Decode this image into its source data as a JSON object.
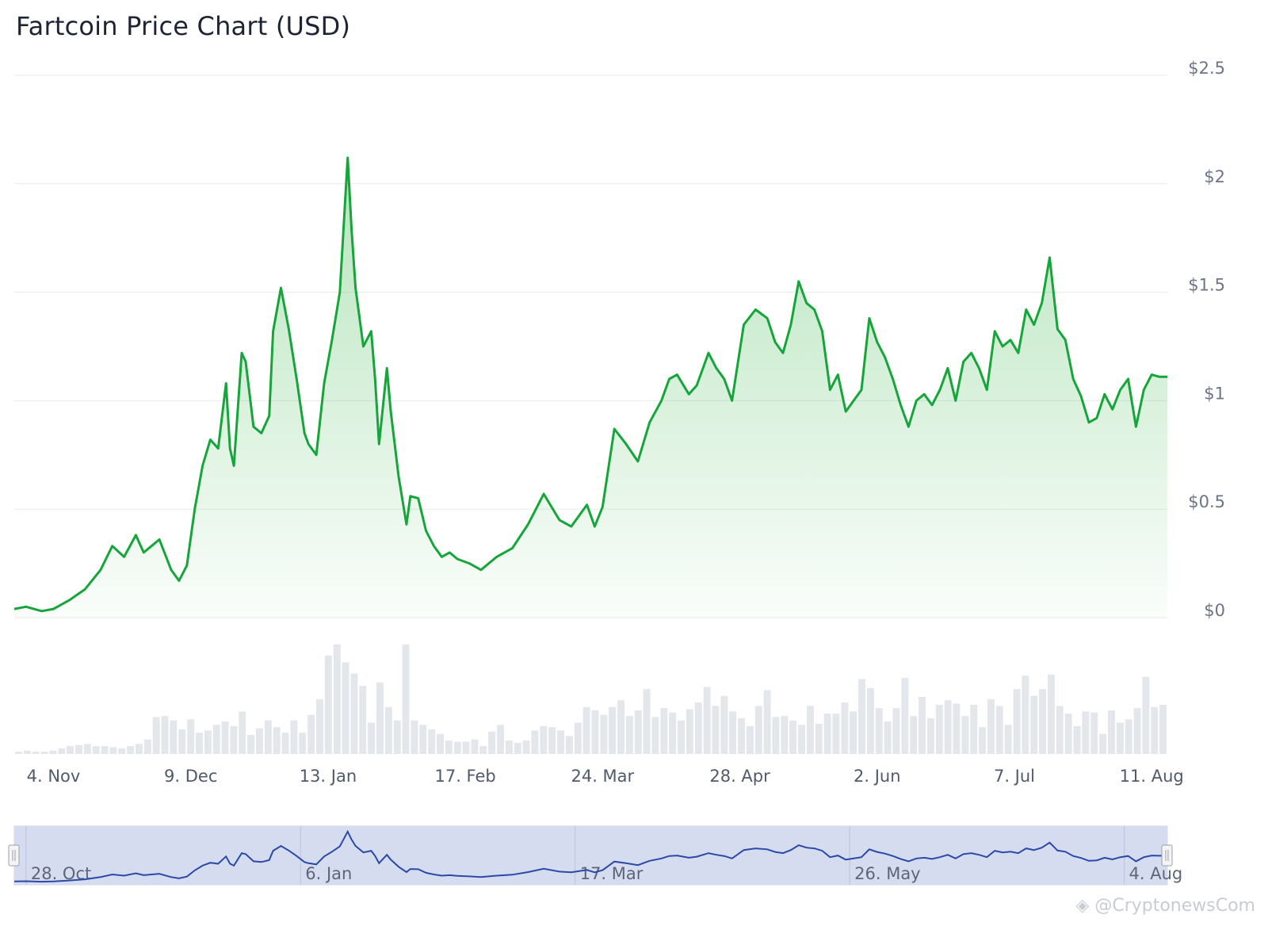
{
  "title": "Fartcoin Price Chart (USD)",
  "watermark": "@CryptonewsCom",
  "colors": {
    "price_line": "#16a53a",
    "area_top": "#5cc46a",
    "volume": "#e3e6ea",
    "navigator_fill": "#d6dcf0",
    "navigator_line": "#2b49a6",
    "gridline": "#e8eaee"
  },
  "chart_data": {
    "type": "line",
    "title": "Fartcoin Price Chart (USD)",
    "xlabel": "",
    "ylabel": "",
    "ylim": [
      0,
      2.5
    ],
    "y_ticks": [
      "$0",
      "$0.5",
      "$1",
      "$1.5",
      "$2",
      "$2.5"
    ],
    "x_ticks": [
      "4. Nov",
      "9. Dec",
      "13. Jan",
      "17. Feb",
      "24. Mar",
      "28. Apr",
      "2. Jun",
      "7. Jul",
      "11. Aug"
    ],
    "grid": true,
    "legend": "none",
    "x_range": [
      "2024-10-25",
      "2025-08-15"
    ],
    "series": [
      {
        "x": [
          "2024-10-25",
          "2024-10-28",
          "2024-11-01",
          "2024-11-04",
          "2024-11-08",
          "2024-11-12",
          "2024-11-16",
          "2024-11-19",
          "2024-11-22",
          "2024-11-25",
          "2024-11-27",
          "2024-11-29",
          "2024-12-01",
          "2024-12-04",
          "2024-12-06",
          "2024-12-08",
          "2024-12-10",
          "2024-12-12",
          "2024-12-14",
          "2024-12-16",
          "2024-12-18",
          "2024-12-19",
          "2024-12-20",
          "2024-12-22",
          "2024-12-23",
          "2024-12-25",
          "2024-12-27",
          "2024-12-29",
          "2024-12-30",
          "2025-01-01",
          "2025-01-03",
          "2025-01-05",
          "2025-01-07",
          "2025-01-08",
          "2025-01-10",
          "2025-01-12",
          "2025-01-14",
          "2025-01-16",
          "2025-01-18",
          "2025-01-19",
          "2025-01-20",
          "2025-01-22",
          "2025-01-24",
          "2025-01-25",
          "2025-01-26",
          "2025-01-28",
          "2025-01-29",
          "2025-01-31",
          "2025-02-02",
          "2025-02-03",
          "2025-02-05",
          "2025-02-07",
          "2025-02-09",
          "2025-02-11",
          "2025-02-13",
          "2025-02-15",
          "2025-02-18",
          "2025-02-21",
          "2025-02-25",
          "2025-03-01",
          "2025-03-05",
          "2025-03-09",
          "2025-03-13",
          "2025-03-16",
          "2025-03-20",
          "2025-03-22",
          "2025-03-24",
          "2025-03-27",
          "2025-03-30",
          "2025-04-02",
          "2025-04-05",
          "2025-04-08",
          "2025-04-10",
          "2025-04-12",
          "2025-04-15",
          "2025-04-17",
          "2025-04-20",
          "2025-04-22",
          "2025-04-24",
          "2025-04-26",
          "2025-04-29",
          "2025-05-02",
          "2025-05-05",
          "2025-05-07",
          "2025-05-09",
          "2025-05-11",
          "2025-05-13",
          "2025-05-15",
          "2025-05-17",
          "2025-05-19",
          "2025-05-21",
          "2025-05-23",
          "2025-05-25",
          "2025-05-27",
          "2025-05-29",
          "2025-05-31",
          "2025-06-02",
          "2025-06-04",
          "2025-06-06",
          "2025-06-08",
          "2025-06-10",
          "2025-06-12",
          "2025-06-14",
          "2025-06-16",
          "2025-06-18",
          "2025-06-20",
          "2025-06-22",
          "2025-06-24",
          "2025-06-26",
          "2025-06-28",
          "2025-06-30",
          "2025-07-02",
          "2025-07-04",
          "2025-07-06",
          "2025-07-08",
          "2025-07-10",
          "2025-07-12",
          "2025-07-14",
          "2025-07-16",
          "2025-07-18",
          "2025-07-20",
          "2025-07-22",
          "2025-07-24",
          "2025-07-26",
          "2025-07-28",
          "2025-07-30",
          "2025-08-01",
          "2025-08-03",
          "2025-08-05",
          "2025-08-07",
          "2025-08-09",
          "2025-08-11",
          "2025-08-13",
          "2025-08-15"
        ],
        "values": [
          0.04,
          0.05,
          0.03,
          0.04,
          0.08,
          0.13,
          0.22,
          0.33,
          0.28,
          0.38,
          0.3,
          0.33,
          0.36,
          0.22,
          0.17,
          0.24,
          0.5,
          0.7,
          0.82,
          0.78,
          1.08,
          0.78,
          0.7,
          1.22,
          1.18,
          0.88,
          0.85,
          0.93,
          1.32,
          1.52,
          1.33,
          1.1,
          0.85,
          0.8,
          0.75,
          1.08,
          1.28,
          1.5,
          2.12,
          1.79,
          1.52,
          1.25,
          1.32,
          1.1,
          0.8,
          1.15,
          0.95,
          0.65,
          0.43,
          0.56,
          0.55,
          0.4,
          0.33,
          0.28,
          0.3,
          0.27,
          0.25,
          0.22,
          0.28,
          0.32,
          0.43,
          0.57,
          0.45,
          0.42,
          0.52,
          0.42,
          0.51,
          0.87,
          0.8,
          0.72,
          0.9,
          1.0,
          1.1,
          1.12,
          1.03,
          1.07,
          1.22,
          1.15,
          1.1,
          1.0,
          1.35,
          1.42,
          1.38,
          1.27,
          1.22,
          1.35,
          1.55,
          1.45,
          1.42,
          1.32,
          1.05,
          1.12,
          0.95,
          1.0,
          1.05,
          1.38,
          1.27,
          1.2,
          1.1,
          0.98,
          0.88,
          1.0,
          1.03,
          0.98,
          1.05,
          1.15,
          1.0,
          1.18,
          1.22,
          1.15,
          1.05,
          1.32,
          1.25,
          1.28,
          1.22,
          1.42,
          1.35,
          1.45,
          1.66,
          1.33,
          1.28,
          1.1,
          1.02,
          0.9,
          0.92,
          1.03,
          0.96,
          1.05,
          1.1,
          0.88,
          1.05,
          1.12,
          1.11,
          1.11
        ]
      }
    ],
    "volume": {
      "x_range": [
        "2024-10-25",
        "2025-08-15"
      ],
      "values": [
        0.02,
        0.03,
        0.02,
        0.02,
        0.03,
        0.05,
        0.07,
        0.08,
        0.09,
        0.07,
        0.07,
        0.06,
        0.05,
        0.07,
        0.09,
        0.13,
        0.33,
        0.34,
        0.3,
        0.22,
        0.31,
        0.19,
        0.21,
        0.26,
        0.29,
        0.25,
        0.38,
        0.17,
        0.23,
        0.3,
        0.24,
        0.19,
        0.3,
        0.19,
        0.35,
        0.49,
        0.88,
        0.98,
        0.82,
        0.72,
        0.61,
        0.28,
        0.64,
        0.42,
        0.3,
        0.98,
        0.3,
        0.26,
        0.22,
        0.18,
        0.12,
        0.11,
        0.11,
        0.13,
        0.07,
        0.2,
        0.26,
        0.12,
        0.1,
        0.12,
        0.21,
        0.25,
        0.24,
        0.21,
        0.16,
        0.28,
        0.42,
        0.39,
        0.35,
        0.42,
        0.48,
        0.34,
        0.39,
        0.58,
        0.33,
        0.41,
        0.37,
        0.3,
        0.4,
        0.46,
        0.6,
        0.43,
        0.52,
        0.38,
        0.32,
        0.25,
        0.43,
        0.57,
        0.33,
        0.34,
        0.3,
        0.26,
        0.43,
        0.27,
        0.36,
        0.36,
        0.46,
        0.38,
        0.67,
        0.59,
        0.41,
        0.29,
        0.41,
        0.68,
        0.34,
        0.51,
        0.32,
        0.44,
        0.48,
        0.45,
        0.34,
        0.44,
        0.24,
        0.49,
        0.43,
        0.26,
        0.58,
        0.7,
        0.52,
        0.58,
        0.71,
        0.43,
        0.36,
        0.25,
        0.38,
        0.37,
        0.18,
        0.39,
        0.28,
        0.31,
        0.41,
        0.69,
        0.42,
        0.44
      ]
    },
    "navigator": {
      "x_ticks": [
        "28. Oct",
        "6. Jan",
        "17. Mar",
        "26. May",
        "4. Aug"
      ]
    }
  }
}
